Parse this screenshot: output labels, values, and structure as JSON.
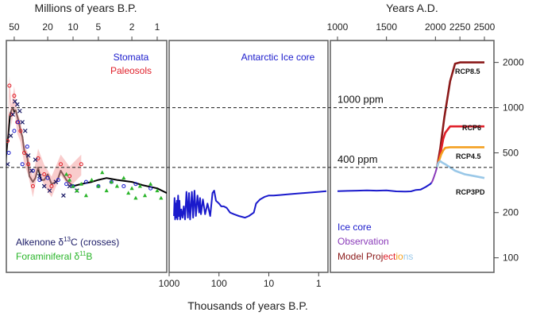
{
  "chart_data": {
    "type": "line",
    "title": "",
    "log_y": true,
    "ylim": [
      80,
      2800
    ],
    "yticks": [
      {
        "value": 2000,
        "label": "2000"
      },
      {
        "value": 1000,
        "label": "1000"
      },
      {
        "value": 500,
        "label": "500"
      },
      {
        "value": 200,
        "label": "200"
      },
      {
        "value": 100,
        "label": "100"
      }
    ],
    "reference_lines": [
      {
        "value": 1000,
        "label": "1000 ppm"
      },
      {
        "value": 400,
        "label": "400 ppm"
      }
    ],
    "panels": [
      {
        "id": "proxy",
        "top_axis_label": "Millions of years B.P.",
        "xlim": [
          100,
          0.77
        ],
        "log_x": true,
        "xticks": [
          {
            "value": 50,
            "label": "50"
          },
          {
            "value": 20,
            "label": "20"
          },
          {
            "value": 10,
            "label": "10"
          },
          {
            "value": 5,
            "label": "5"
          },
          {
            "value": 2,
            "label": "2"
          },
          {
            "value": 1,
            "label": "1"
          }
        ],
        "annotations": [
          {
            "text": "Stomata",
            "color": "#1a1acc"
          },
          {
            "text": "Paleosols",
            "color": "#e0202a"
          },
          {
            "text": "Alkenone δ13C (crosses)",
            "color": "#1a1a66"
          },
          {
            "text": "Foraminiferal δ11B",
            "color": "#2ab52a"
          }
        ],
        "series": [
          {
            "name": "",
            "color": "#000000",
            "x": [
              100,
              80,
              65,
              58,
              56,
              54,
              52,
              50,
              48,
              46,
              44,
              42,
              40,
              38,
              35,
              33,
              30,
              28,
              26,
              24,
              22,
              20,
              18,
              16,
              15,
              14,
              12,
              10,
              8,
              6,
              5,
              4,
              3,
              2,
              1.5,
              1,
              0.77
            ],
            "y": [
              440,
              460,
              380,
              720,
              900,
              960,
              1000,
              940,
              960,
              880,
              800,
              700,
              640,
              520,
              470,
              350,
              320,
              340,
              400,
              330,
              330,
              360,
              310,
              320,
              340,
              380,
              330,
              300,
              310,
              320,
              330,
              340,
              330,
              320,
              305,
              290,
              270
            ]
          },
          {
            "name": "Paleosols",
            "color": "#e0202a",
            "x": [
              60,
              57,
              54,
              50,
              46,
              42,
              38,
              34,
              30,
              26,
              22,
              18,
              14,
              11,
              8
            ],
            "y": [
              600,
              1400,
              900,
              1200,
              800,
              700,
              500,
              420,
              300,
              460,
              360,
              300,
              420,
              350,
              420
            ]
          },
          {
            "name": "Stomata",
            "color": "#1a1acc",
            "x": [
              58,
              50,
              45,
              40,
              35,
              30,
              25,
              20,
              15,
              12,
              10,
              7,
              5,
              3.5,
              2.5,
              1.8,
              1.2
            ],
            "y": [
              500,
              700,
              800,
              420,
              550,
              380,
              330,
              340,
              330,
              310,
              300,
              320,
              300,
              320,
              300,
              310,
              290
            ]
          },
          {
            "name": "Alkenone δ13C (crosses)",
            "color": "#1a1a66",
            "x": [
              60,
              55,
              52,
              49,
              46,
              43,
              40,
              37,
              34,
              31,
              28,
              25,
              22,
              19,
              16,
              13,
              11,
              9
            ],
            "y": [
              420,
              650,
              900,
              1100,
              1050,
              950,
              800,
              700,
              480,
              380,
              450,
              350,
              300,
              280,
              320,
              260,
              300,
              280
            ]
          },
          {
            "name": "Foraminiferal δ11B",
            "color": "#2ab52a",
            "x": [
              12,
              11,
              10,
              9,
              8,
              7,
              6,
              5,
              4.5,
              4,
              3.5,
              3,
              2.5,
              2.2,
              2,
              1.8,
              1.6,
              1.4,
              1.2,
              1,
              0.9
            ],
            "y": [
              360,
              330,
              300,
              280,
              310,
              260,
              330,
              300,
              370,
              280,
              320,
              300,
              340,
              270,
              290,
              250,
              300,
              260,
              310,
              280,
              250
            ]
          }
        ]
      },
      {
        "id": "icecore",
        "top_axis_label": "",
        "xlim": [
          1000,
          0.7
        ],
        "log_x": true,
        "xticks": [
          {
            "value": 1000,
            "label": "1000"
          },
          {
            "value": 100,
            "label": "100"
          },
          {
            "value": 10,
            "label": "10"
          },
          {
            "value": 1,
            "label": "1"
          }
        ],
        "annotations": [
          {
            "text": "Antarctic Ice core",
            "color": "#1a1acc"
          }
        ],
        "series": [
          {
            "name": "Antarctic Ice core",
            "color": "#1a1acc",
            "x": [
              800,
              780,
              760,
              740,
              720,
              700,
              680,
              660,
              640,
              620,
              600,
              570,
              540,
              510,
              480,
              450,
              420,
              400,
              380,
              350,
              330,
              310,
              290,
              270,
              250,
              240,
              230,
              210,
              190,
              170,
              150,
              135,
              125,
              115,
              100,
              90,
              80,
              70,
              60,
              50,
              40,
              30,
              25,
              20,
              18,
              15,
              12,
              10,
              8,
              6,
              4,
              2,
              1,
              0.7
            ],
            "y": [
              190,
              250,
              180,
              230,
              185,
              240,
              180,
              260,
              190,
              240,
              180,
              210,
              185,
              220,
              180,
              275,
              185,
              270,
              180,
              275,
              185,
              280,
              190,
              260,
              200,
              250,
              195,
              245,
              195,
              230,
              190,
              270,
              280,
              240,
              230,
              220,
              220,
              215,
              200,
              195,
              190,
              185,
              190,
              200,
              230,
              245,
              255,
              260,
              260,
              262,
              265,
              270,
              275,
              278
            ]
          }
        ]
      },
      {
        "id": "modern",
        "top_axis_label": "Years A.D.",
        "xlim": [
          1000,
          2500
        ],
        "log_x": false,
        "xticks": [
          {
            "value": 1000,
            "label": "1000"
          },
          {
            "value": 1500,
            "label": "1500"
          },
          {
            "value": 2000,
            "label": "2000"
          },
          {
            "value": 2250,
            "label": "2250"
          },
          {
            "value": 2500,
            "label": "2500"
          }
        ],
        "annotations": [
          {
            "text": "Ice core",
            "color": "#1a1acc"
          },
          {
            "text": "Observation",
            "color": "#8a3ab9"
          }
        ],
        "legend_model_label": [
          {
            "text": "Model Proj",
            "color": "#8b1a1a"
          },
          {
            "text": "ect",
            "color": "#e0202a"
          },
          {
            "text": "io",
            "color": "#f4a020"
          },
          {
            "text": "ns",
            "color": "#9ac8e8"
          }
        ],
        "series": [
          {
            "name": "Ice core",
            "color": "#1a1acc",
            "x": [
              1000,
              1100,
              1200,
              1300,
              1400,
              1500,
              1600,
              1700,
              1750,
              1800,
              1850,
              1900,
              1950,
              1960
            ],
            "y": [
              278,
              279,
              280,
              281,
              280,
              281,
              277,
              276,
              277,
              283,
              285,
              296,
              311,
              317
            ]
          },
          {
            "name": "Observation",
            "color": "#8a3ab9",
            "x": [
              1958,
              1970,
              1980,
              1990,
              2000,
              2010,
              2015
            ],
            "y": [
              315,
              325,
              339,
              354,
              369,
              389,
              400
            ]
          },
          {
            "name": "RCP8.5",
            "color": "#8b1a1a",
            "x": [
              2015,
              2030,
              2050,
              2070,
              2090,
              2100,
              2150,
              2200,
              2250,
              2300,
              2350,
              2400,
              2450,
              2500
            ],
            "y": [
              400,
              450,
              540,
              680,
              850,
              940,
              1500,
              1960,
              2000,
              2000,
              2000,
              2000,
              2000,
              2000
            ]
          },
          {
            "name": "RCP6",
            "color": "#e0202a",
            "x": [
              2015,
              2040,
              2060,
              2080,
              2100,
              2150,
              2200,
              2300,
              2400,
              2500
            ],
            "y": [
              400,
              460,
              530,
              620,
              680,
              750,
              750,
              750,
              750,
              750
            ]
          },
          {
            "name": "RCP4.5",
            "color": "#f4a020",
            "x": [
              2015,
              2040,
              2060,
              2080,
              2100,
              2150,
              2200,
              2300,
              2400,
              2500
            ],
            "y": [
              400,
              450,
              490,
              520,
              540,
              545,
              545,
              545,
              545,
              545
            ]
          },
          {
            "name": "RCP3PD",
            "color": "#9ac8e8",
            "x": [
              2015,
              2030,
              2050,
              2070,
              2100,
              2150,
              2200,
              2300,
              2400,
              2500
            ],
            "y": [
              400,
              430,
              440,
              430,
              420,
              400,
              380,
              360,
              350,
              340
            ]
          }
        ]
      }
    ],
    "axis_labels": {
      "bottom": "Thousands of years B.P."
    }
  }
}
